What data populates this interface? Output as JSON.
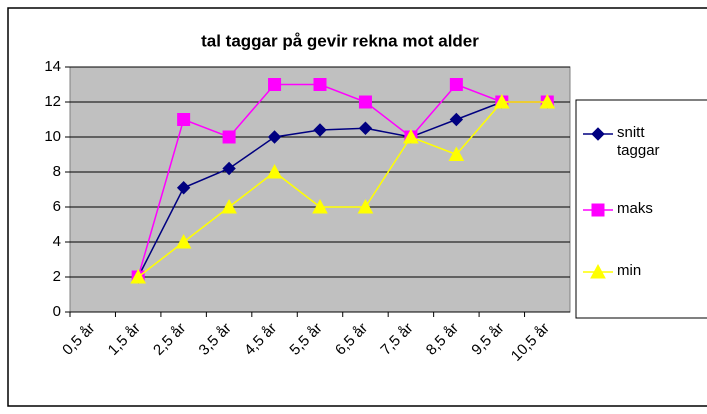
{
  "chart_data": {
    "type": "line",
    "title": "tal taggar på gevir rekna mot alder",
    "categories": [
      "0,5 år",
      "1,5 år",
      "2,5 år",
      "3,5 år",
      "4,5 år",
      "5,5 år",
      "6,5 år",
      "7,5 år",
      "8,5 år",
      "9,5 år",
      "10,5 år"
    ],
    "series": [
      {
        "name": "snitt taggar",
        "color": "#000080",
        "marker": "diamond",
        "values": [
          null,
          2,
          7.1,
          8.2,
          10,
          10.4,
          10.5,
          10,
          11,
          12,
          12
        ]
      },
      {
        "name": "maks",
        "color": "#ff00ff",
        "marker": "square",
        "values": [
          null,
          2,
          11,
          10,
          13,
          13,
          12,
          10,
          13,
          12,
          12
        ]
      },
      {
        "name": "min",
        "color": "#ffff00",
        "marker": "triangle",
        "values": [
          null,
          2,
          4,
          6,
          8,
          6,
          6,
          10,
          9,
          12,
          12
        ]
      }
    ],
    "ylim": [
      0,
      14
    ],
    "yticks": [
      0,
      2,
      4,
      6,
      8,
      10,
      12,
      14
    ],
    "grid": true,
    "legend": "right"
  }
}
